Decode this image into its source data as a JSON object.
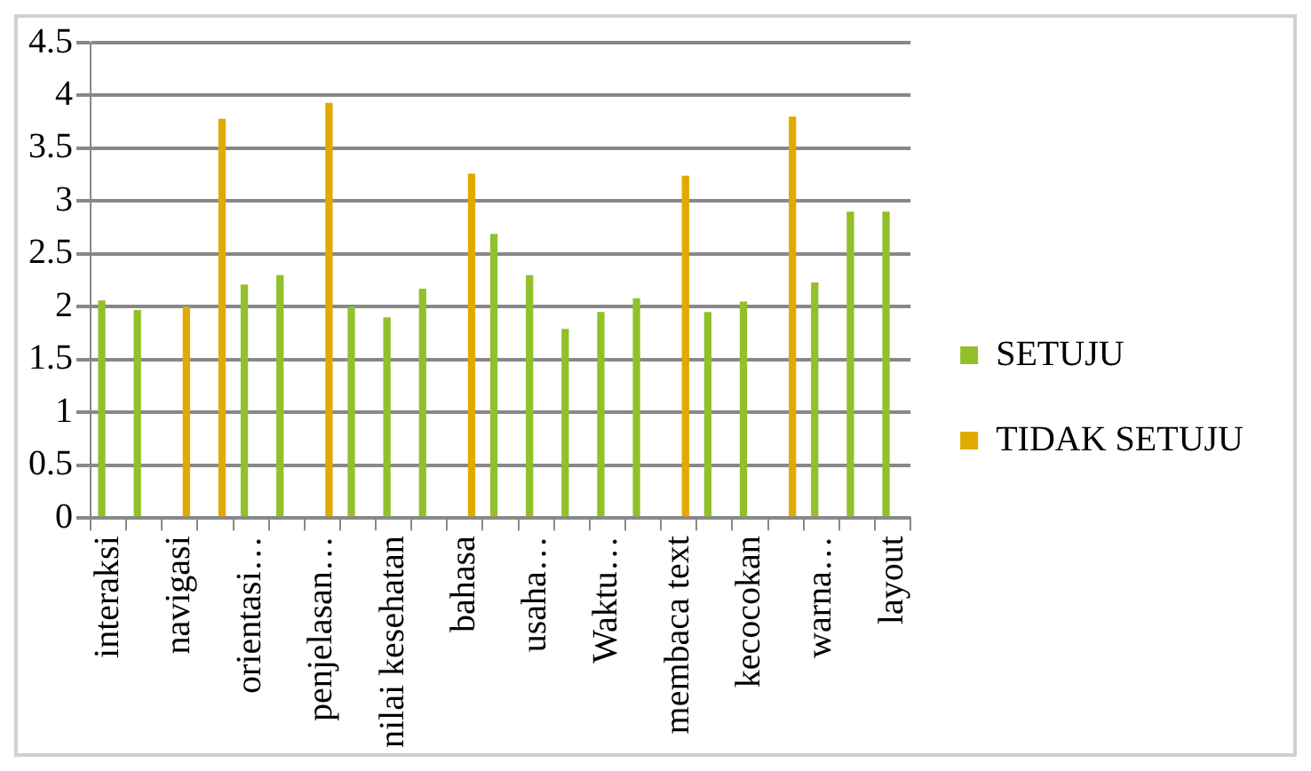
{
  "chart_data": {
    "type": "bar",
    "categories": [
      "interaksi",
      null,
      "navigasi",
      null,
      "orientasi…",
      null,
      "penjelasan…",
      null,
      "nilai kesehatan",
      null,
      "bahasa",
      null,
      "usaha…",
      null,
      "Waktu…",
      null,
      "membaca text",
      null,
      "kecocokan",
      null,
      "warna…",
      null,
      "layout"
    ],
    "series": [
      {
        "name": "SETUJU",
        "color": "#92c02a",
        "values": [
          2.06,
          1.97,
          null,
          null,
          2.21,
          2.3,
          null,
          2.0,
          1.9,
          2.17,
          null,
          2.69,
          2.3,
          1.79,
          1.95,
          2.08,
          null,
          1.95,
          2.05,
          null,
          2.23,
          2.9,
          2.9
        ]
      },
      {
        "name": "TIDAK SETUJU",
        "color": "#e0aa00",
        "values": [
          null,
          null,
          2.0,
          3.78,
          null,
          null,
          3.93,
          null,
          null,
          null,
          3.26,
          null,
          null,
          null,
          null,
          null,
          3.24,
          null,
          null,
          3.8,
          null,
          null,
          null
        ]
      }
    ],
    "ylim": [
      0,
      4.5
    ],
    "yticks": [
      0,
      0.5,
      1,
      1.5,
      2,
      2.5,
      3,
      3.5,
      4,
      4.5
    ],
    "grid": "y",
    "legend": "right"
  }
}
